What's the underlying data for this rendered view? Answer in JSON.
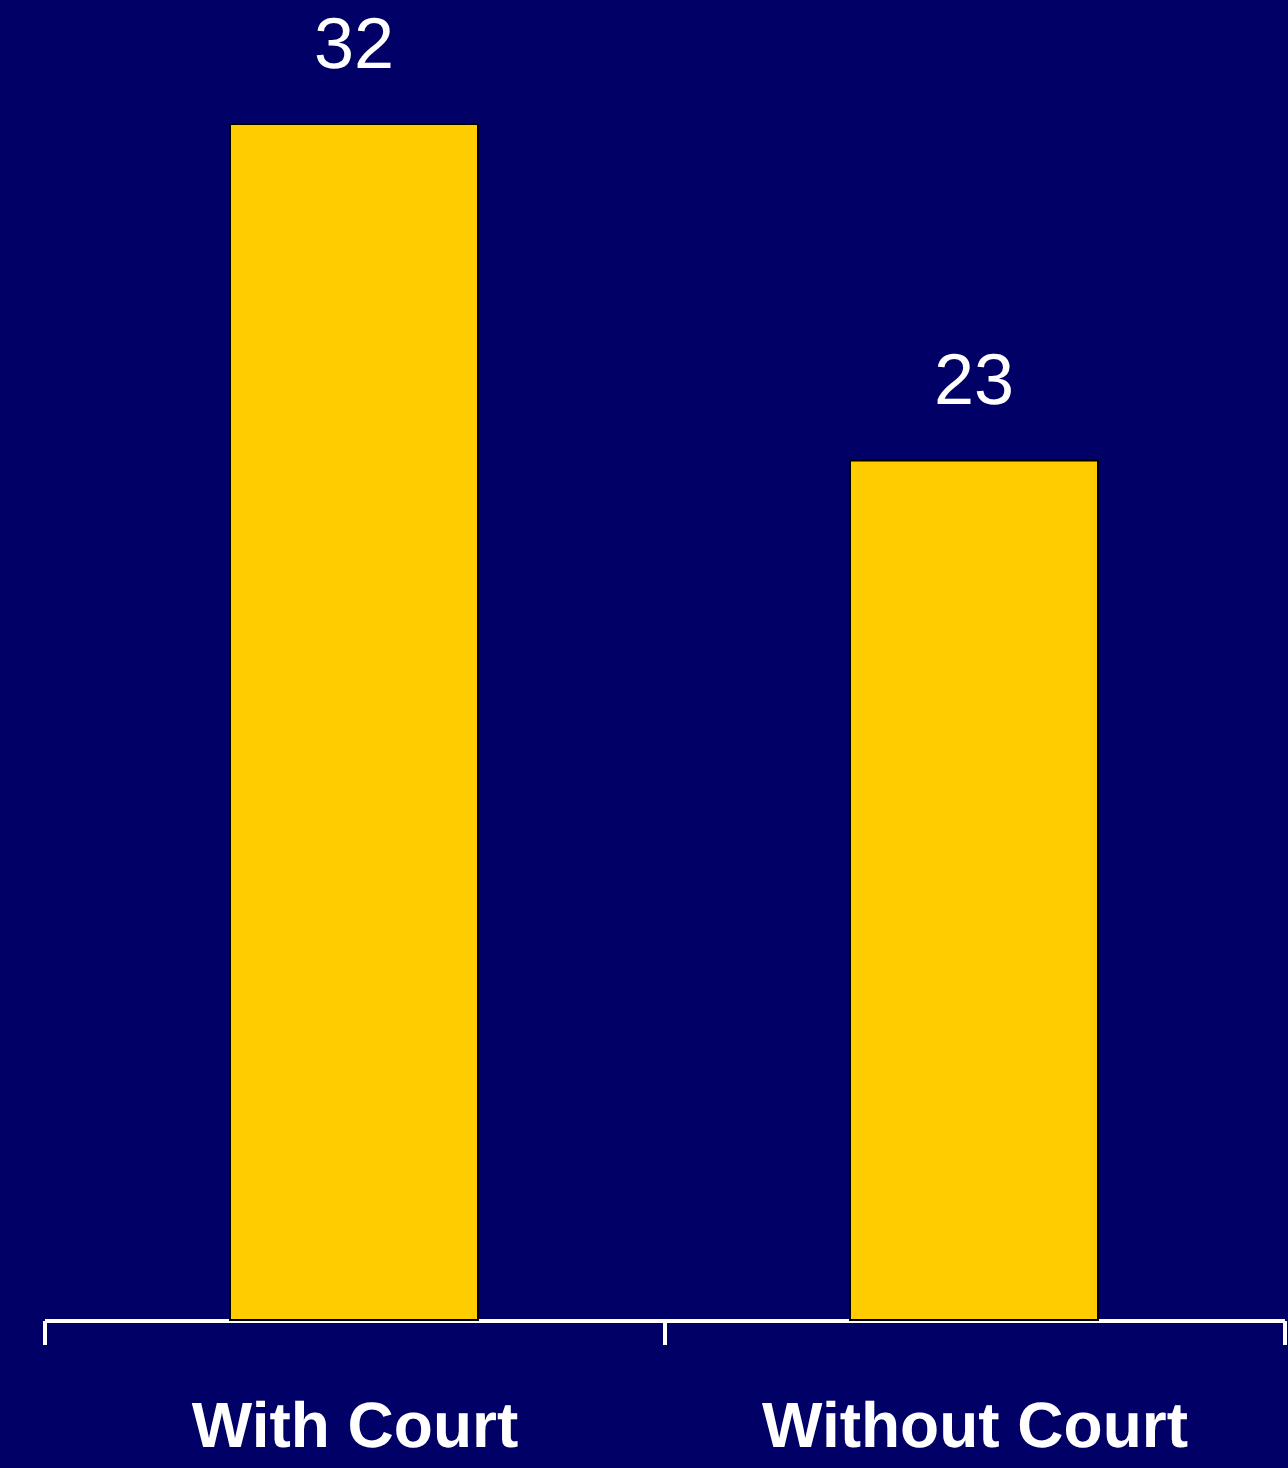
{
  "chart_data": {
    "type": "bar",
    "categories": [
      "With Court",
      "Without Court"
    ],
    "values": [
      32,
      23
    ],
    "color": "#ffcc00",
    "data_labels": true
  }
}
